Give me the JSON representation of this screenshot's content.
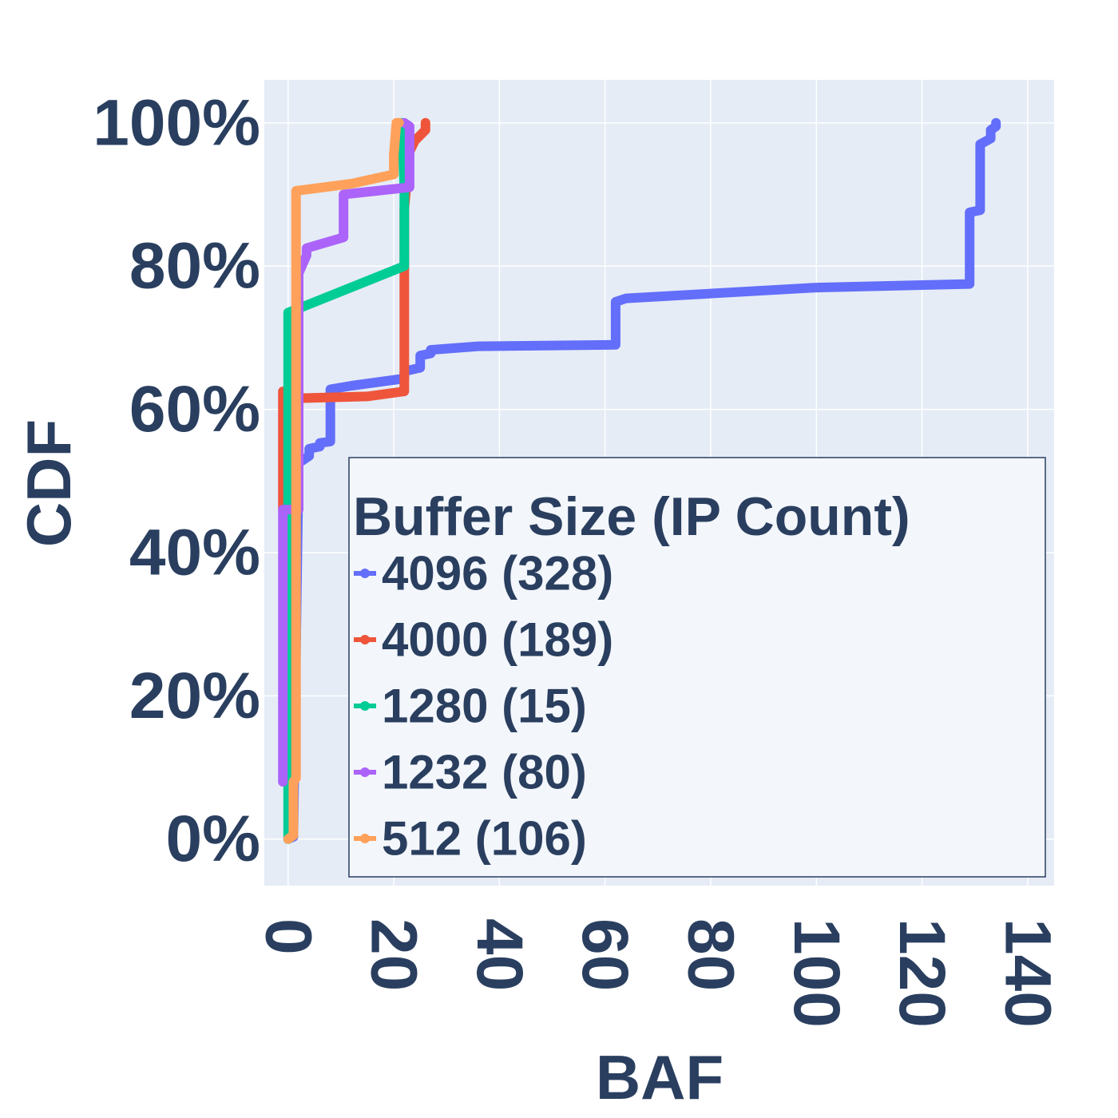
{
  "chart_data": {
    "type": "line",
    "xlabel": "BAF",
    "ylabel": "CDF",
    "xlim": [
      -4.5,
      145
    ],
    "ylim": [
      -6.5,
      106
    ],
    "x_ticks": [
      0,
      20,
      40,
      60,
      80,
      100,
      120,
      140
    ],
    "x_tick_labels": [
      "0",
      "20",
      "40",
      "60",
      "80",
      "100",
      "120",
      "140"
    ],
    "y_ticks": [
      0,
      20,
      40,
      60,
      80,
      100
    ],
    "y_tick_labels": [
      "0%",
      "20%",
      "40%",
      "60%",
      "80%",
      "100%"
    ],
    "grid": true,
    "legend": {
      "title": "Buffer Size (IP Count)",
      "position": "bottom-right"
    },
    "series": [
      {
        "name": "4096 (328)",
        "color": "#636efa",
        "points": [
          [
            0,
            0
          ],
          [
            1,
            0.3
          ],
          [
            2,
            52.5
          ],
          [
            4,
            53.5
          ],
          [
            4,
            54.5
          ],
          [
            6,
            54.8
          ],
          [
            6,
            55.3
          ],
          [
            8,
            55.5
          ],
          [
            8,
            62.8
          ],
          [
            12,
            63.3
          ],
          [
            22,
            64.3
          ],
          [
            22,
            65.3
          ],
          [
            25,
            65.8
          ],
          [
            25,
            67.5
          ],
          [
            27,
            67.8
          ],
          [
            27,
            68.3
          ],
          [
            36,
            68.8
          ],
          [
            62,
            69
          ],
          [
            62,
            75
          ],
          [
            64,
            75.5
          ],
          [
            100,
            77
          ],
          [
            129,
            77.5
          ],
          [
            129,
            87.5
          ],
          [
            131,
            87.8
          ],
          [
            131,
            97
          ],
          [
            133,
            97.8
          ],
          [
            133,
            99
          ],
          [
            134,
            99.5
          ],
          [
            134,
            100
          ]
        ]
      },
      {
        "name": "4000 (189)",
        "color": "#ef553b",
        "points": [
          [
            -1,
            46
          ],
          [
            -1,
            62.5
          ],
          [
            0,
            62.5
          ],
          [
            0,
            61.5
          ],
          [
            15,
            61.8
          ],
          [
            22,
            62.5
          ],
          [
            22,
            79.5
          ],
          [
            22,
            88
          ],
          [
            23,
            96
          ],
          [
            24,
            97.5
          ],
          [
            26,
            99
          ],
          [
            26,
            100
          ]
        ]
      },
      {
        "name": "1280 (15)",
        "color": "#00cc96",
        "points": [
          [
            0,
            0
          ],
          [
            0,
            73.5
          ],
          [
            22,
            80
          ],
          [
            22,
            91
          ],
          [
            21.5,
            100
          ]
        ]
      },
      {
        "name": "1232 (80)",
        "color": "#ab63fa",
        "points": [
          [
            -1,
            8
          ],
          [
            -1,
            46
          ],
          [
            2,
            46
          ],
          [
            2,
            79
          ],
          [
            3.5,
            81.5
          ],
          [
            3.5,
            82.5
          ],
          [
            10.5,
            84
          ],
          [
            10.5,
            90
          ],
          [
            23,
            91
          ],
          [
            23,
            99.5
          ],
          [
            22,
            100
          ]
        ]
      },
      {
        "name": "512 (106)",
        "color": "#ffa15a",
        "points": [
          [
            0,
            0
          ],
          [
            1,
            0.5
          ],
          [
            1,
            8
          ],
          [
            1.5,
            8.5
          ],
          [
            1.5,
            90.5
          ],
          [
            12,
            91.5
          ],
          [
            20,
            92.8
          ],
          [
            20,
            95.5
          ],
          [
            20.5,
            100
          ],
          [
            21,
            100
          ]
        ]
      }
    ]
  }
}
